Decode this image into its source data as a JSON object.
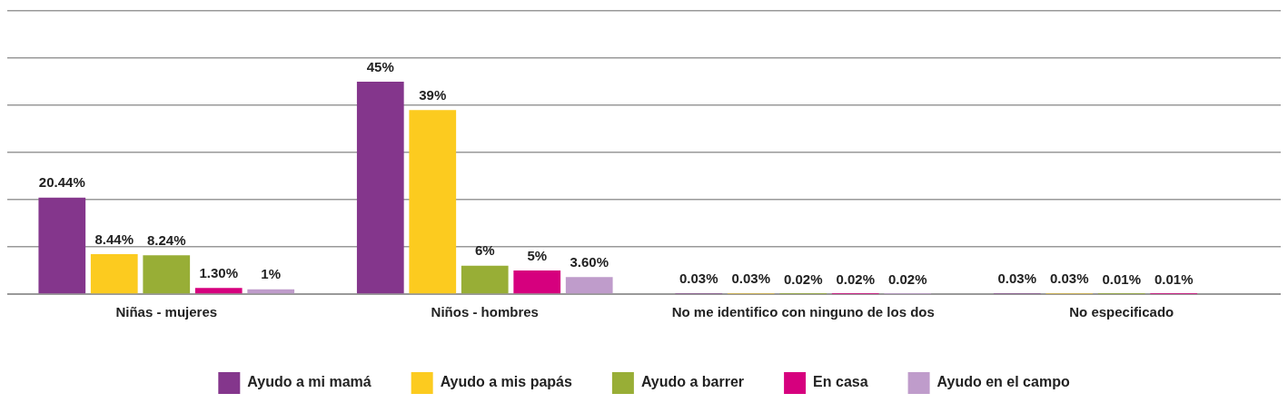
{
  "chart_data": {
    "type": "bar",
    "categories": [
      "Niñas - mujeres",
      "Niños - hombres",
      "No me identifico con ninguno de los dos",
      "No especificado"
    ],
    "series": [
      {
        "name": "Ayudo a mi mamá",
        "color": "#84368c",
        "values": [
          20.44,
          45,
          0.03,
          0.03
        ],
        "value_labels": [
          "20.44%",
          "45%",
          "0.03%",
          "0.03%"
        ]
      },
      {
        "name": "Ayudo a mis papás",
        "color": "#fccb1f",
        "values": [
          8.44,
          39,
          0.03,
          0.03
        ],
        "value_labels": [
          "8.44%",
          "39%",
          "0.03%",
          "0.03%"
        ]
      },
      {
        "name": "Ayudo a barrer",
        "color": "#98ae36",
        "values": [
          8.24,
          6,
          0.02,
          0.01
        ],
        "value_labels": [
          "8.24%",
          "6%",
          "0.02%",
          "0.01%"
        ]
      },
      {
        "name": "En casa",
        "color": "#d6007e",
        "values": [
          1.3,
          5,
          0.02,
          0.01
        ],
        "value_labels": [
          "1.30%",
          "5%",
          "0.02%",
          "0.01%"
        ]
      },
      {
        "name": "Ayudo en el campo",
        "color": "#bf9ccb",
        "values": [
          1,
          3.6,
          0.02,
          null
        ],
        "value_labels": [
          "1%",
          "3.60%",
          "0.02%",
          null
        ]
      }
    ],
    "ylim": [
      0,
      60
    ],
    "tick_labels": "x",
    "grid": "y",
    "legend": "bottom"
  }
}
